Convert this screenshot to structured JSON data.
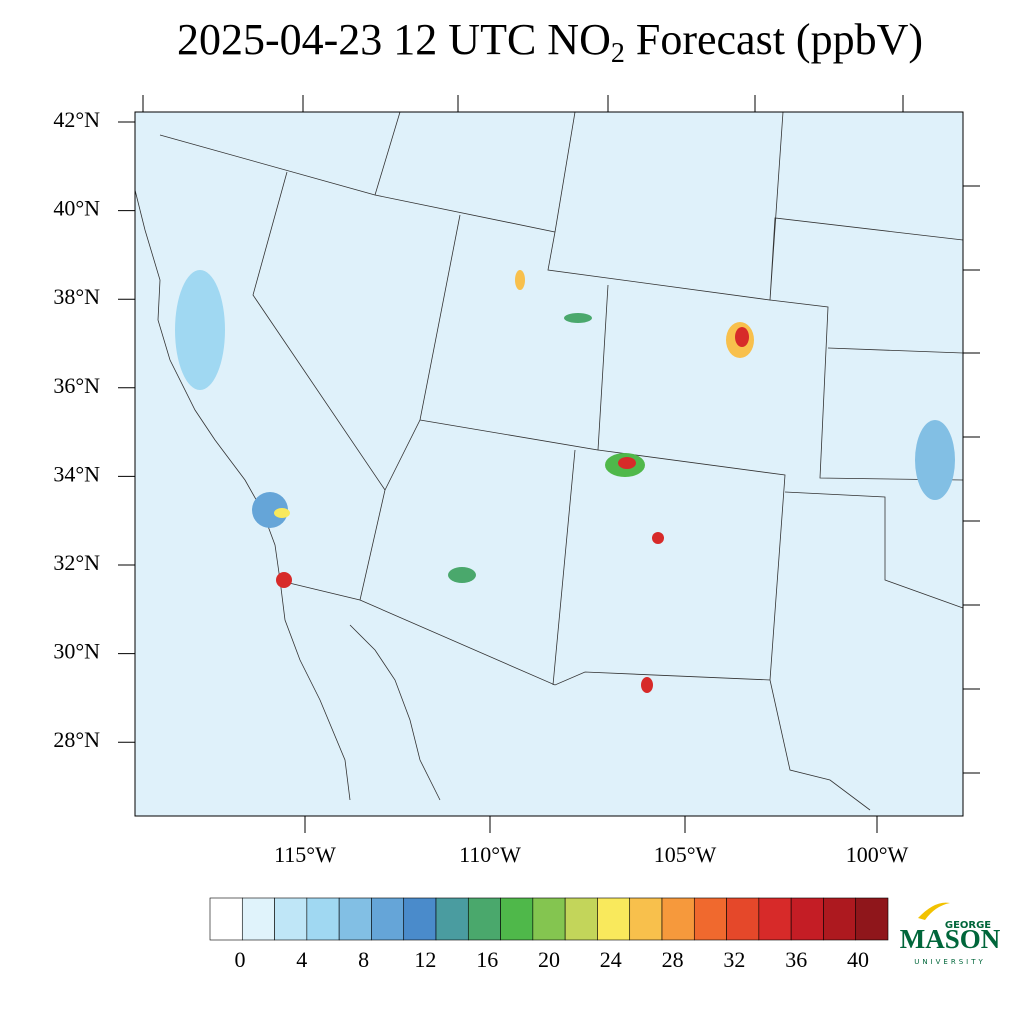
{
  "title_main": "2025-04-23 12 UTC NO",
  "title_sub": "2",
  "title_rest": " Forecast (ppbV)",
  "lat_labels": [
    "42°N",
    "40°N",
    "38°N",
    "36°N",
    "34°N",
    "32°N",
    "30°N",
    "28°N"
  ],
  "lon_labels": [
    "115°W",
    "110°W",
    "105°W",
    "100°W"
  ],
  "colorbar": {
    "ticks": [
      0,
      4,
      8,
      12,
      16,
      20,
      24,
      28,
      32,
      36,
      40
    ],
    "colors": [
      "#ffffff",
      "#e0f3fb",
      "#bfe6f7",
      "#a0d8f2",
      "#82bfe4",
      "#65a5d8",
      "#4a8bcb",
      "#4a9ca0",
      "#4aa86c",
      "#4fb84a",
      "#84c550",
      "#c3d55a",
      "#f9e95c",
      "#f8c04c",
      "#f6993c",
      "#f0692e",
      "#e5482a",
      "#d72a29",
      "#c41d25",
      "#ad191f",
      "#8f161b"
    ]
  },
  "logo": {
    "top": "GEORGE",
    "main": "MASON",
    "bottom": "UNIVERSITY"
  }
}
